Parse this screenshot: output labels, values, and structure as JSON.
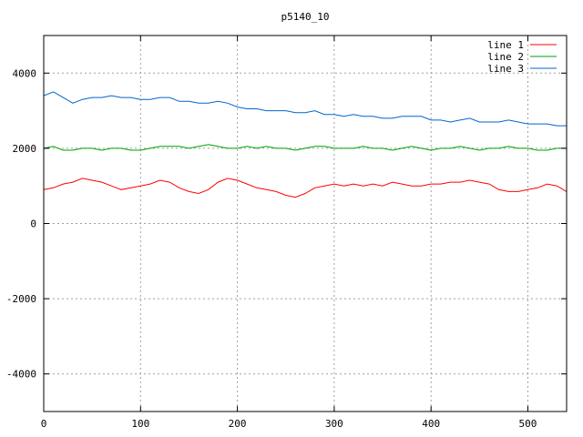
{
  "chart_data": {
    "type": "line",
    "title": "p5140_10",
    "xlabel": "",
    "ylabel": "",
    "xlim": [
      0,
      540
    ],
    "ylim": [
      -5000,
      5000
    ],
    "x_ticks": [
      0,
      100,
      200,
      300,
      400,
      500
    ],
    "y_ticks": [
      -4000,
      -2000,
      0,
      2000,
      4000
    ],
    "grid": true,
    "legend_position": "top-right",
    "x": [
      0,
      10,
      20,
      30,
      40,
      50,
      60,
      70,
      80,
      90,
      100,
      110,
      120,
      130,
      140,
      150,
      160,
      170,
      180,
      190,
      200,
      210,
      220,
      230,
      240,
      250,
      260,
      270,
      280,
      290,
      300,
      310,
      320,
      330,
      340,
      350,
      360,
      370,
      380,
      390,
      400,
      410,
      420,
      430,
      440,
      450,
      460,
      470,
      480,
      490,
      500,
      510,
      520,
      530,
      540
    ],
    "series": [
      {
        "name": "line 1",
        "color": "#ff0000",
        "values": [
          900,
          950,
          1050,
          1100,
          1200,
          1150,
          1100,
          1000,
          900,
          950,
          1000,
          1050,
          1150,
          1100,
          950,
          850,
          800,
          900,
          1100,
          1200,
          1150,
          1050,
          950,
          900,
          850,
          750,
          700,
          800,
          950,
          1000,
          1050,
          1000,
          1050,
          1000,
          1050,
          1000,
          1100,
          1050,
          1000,
          1000,
          1050,
          1050,
          1100,
          1100,
          1150,
          1100,
          1050,
          900,
          850,
          850,
          900,
          950,
          1050,
          1000,
          850
        ]
      },
      {
        "name": "line 2",
        "color": "#00a000",
        "values": [
          2000,
          2050,
          1950,
          1950,
          2000,
          2000,
          1950,
          2000,
          2000,
          1950,
          1950,
          2000,
          2050,
          2050,
          2050,
          2000,
          2050,
          2100,
          2050,
          2000,
          2000,
          2050,
          2000,
          2050,
          2000,
          2000,
          1950,
          2000,
          2050,
          2050,
          2000,
          2000,
          2000,
          2050,
          2000,
          2000,
          1950,
          2000,
          2050,
          2000,
          1950,
          2000,
          2000,
          2050,
          2000,
          1950,
          2000,
          2000,
          2050,
          2000,
          2000,
          1950,
          1950,
          2000,
          2000
        ]
      },
      {
        "name": "line 3",
        "color": "#0066cc",
        "values": [
          3400,
          3500,
          3350,
          3200,
          3300,
          3350,
          3350,
          3400,
          3350,
          3350,
          3300,
          3300,
          3350,
          3350,
          3250,
          3250,
          3200,
          3200,
          3250,
          3200,
          3100,
          3050,
          3050,
          3000,
          3000,
          3000,
          2950,
          2950,
          3000,
          2900,
          2900,
          2850,
          2900,
          2850,
          2850,
          2800,
          2800,
          2850,
          2850,
          2850,
          2750,
          2750,
          2700,
          2750,
          2800,
          2700,
          2700,
          2700,
          2750,
          2700,
          2650,
          2650,
          2650,
          2600,
          2600
        ]
      }
    ]
  }
}
